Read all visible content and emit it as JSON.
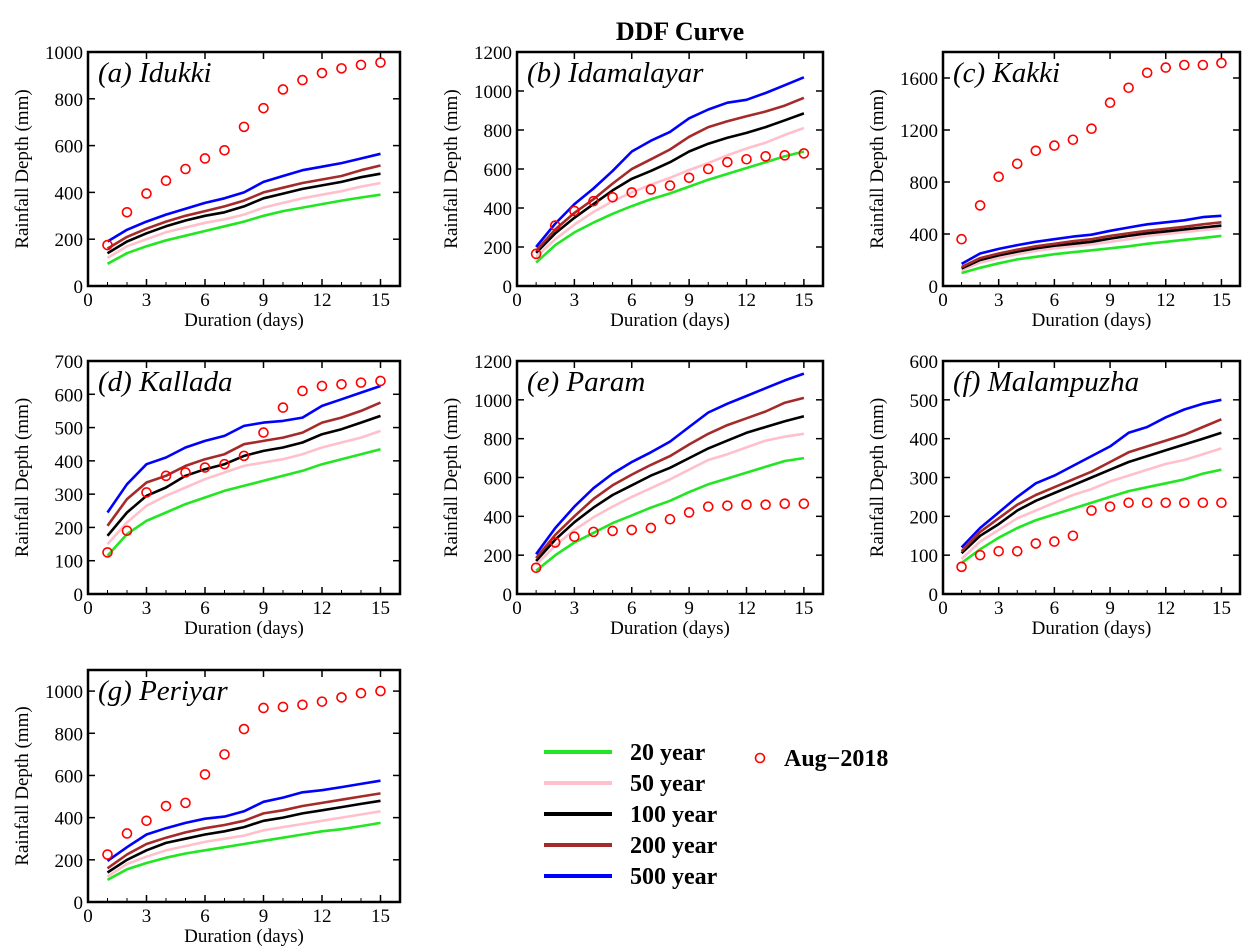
{
  "figure_title": "DDF Curve",
  "colors": {
    "20 year": "#22e622",
    "50 year": "#ffc0cb",
    "100 year": "#000000",
    "200 year": "#a52a2a",
    "500 year": "#0000ff",
    "Aug−2018": "#ff0000"
  },
  "legend": {
    "entries": [
      {
        "label": "20 year",
        "color": "#22e622",
        "kind": "line"
      },
      {
        "label": "50 year",
        "color": "#ffc0cb",
        "kind": "line"
      },
      {
        "label": "100 year",
        "color": "#000000",
        "kind": "line"
      },
      {
        "label": "200 year",
        "color": "#a52a2a",
        "kind": "line"
      },
      {
        "label": "500 year",
        "color": "#0000ff",
        "kind": "line"
      },
      {
        "label": "Aug−2018",
        "color": "#ff0000",
        "kind": "marker"
      }
    ]
  },
  "chart_data": [
    {
      "type": "line",
      "title": "(a) Idukki",
      "xlabel": "Duration (days)",
      "ylabel": "Rainfall Depth (mm)",
      "xlim": [
        0,
        16
      ],
      "ylim": [
        0,
        1000
      ],
      "xticks": [
        0,
        3,
        6,
        9,
        12,
        15
      ],
      "yticks": [
        0,
        200,
        400,
        600,
        800,
        1000
      ],
      "x": [
        1,
        2,
        3,
        4,
        5,
        6,
        7,
        8,
        9,
        10,
        11,
        12,
        13,
        14,
        15
      ],
      "series": [
        {
          "name": "20 year",
          "values": [
            95,
            140,
            170,
            195,
            215,
            235,
            255,
            275,
            300,
            320,
            335,
            350,
            365,
            378,
            390
          ]
        },
        {
          "name": "50 year",
          "values": [
            120,
            170,
            200,
            230,
            250,
            270,
            285,
            305,
            335,
            355,
            375,
            390,
            405,
            425,
            440
          ]
        },
        {
          "name": "100 year",
          "values": [
            140,
            190,
            225,
            255,
            280,
            300,
            315,
            340,
            375,
            395,
            415,
            430,
            445,
            465,
            480
          ]
        },
        {
          "name": "200 year",
          "values": [
            160,
            210,
            245,
            275,
            300,
            320,
            340,
            365,
            400,
            420,
            440,
            455,
            470,
            495,
            515
          ]
        },
        {
          "name": "500 year",
          "values": [
            190,
            240,
            275,
            305,
            330,
            355,
            375,
            400,
            445,
            470,
            495,
            510,
            525,
            545,
            565
          ]
        },
        {
          "name": "Aug−2018",
          "marker": true,
          "values": [
            175,
            315,
            395,
            450,
            500,
            545,
            580,
            680,
            760,
            840,
            880,
            910,
            930,
            945,
            955
          ]
        }
      ]
    },
    {
      "type": "line",
      "title": "(b) Idamalayar",
      "xlabel": "Duration (days)",
      "ylabel": "Rainfall Depth (mm)",
      "xlim": [
        0,
        16
      ],
      "ylim": [
        0,
        1200
      ],
      "xticks": [
        0,
        3,
        6,
        9,
        12,
        15
      ],
      "yticks": [
        0,
        200,
        400,
        600,
        800,
        1000,
        1200
      ],
      "x": [
        1,
        2,
        3,
        4,
        5,
        6,
        7,
        8,
        9,
        10,
        11,
        12,
        13,
        14,
        15
      ],
      "series": [
        {
          "name": "20 year",
          "values": [
            120,
            210,
            275,
            325,
            370,
            410,
            445,
            475,
            510,
            545,
            575,
            605,
            635,
            665,
            690
          ]
        },
        {
          "name": "50 year",
          "values": [
            150,
            240,
            315,
            380,
            435,
            480,
            520,
            555,
            595,
            630,
            670,
            705,
            735,
            775,
            810
          ]
        },
        {
          "name": "100 year",
          "values": [
            170,
            270,
            350,
            420,
            490,
            550,
            590,
            635,
            690,
            730,
            760,
            785,
            815,
            850,
            885
          ]
        },
        {
          "name": "200 year",
          "values": [
            180,
            290,
            375,
            445,
            525,
            600,
            650,
            700,
            765,
            815,
            845,
            870,
            895,
            925,
            965
          ]
        },
        {
          "name": "500 year",
          "values": [
            200,
            320,
            420,
            500,
            590,
            690,
            745,
            790,
            860,
            905,
            940,
            955,
            990,
            1030,
            1070
          ]
        },
        {
          "name": "Aug−2018",
          "marker": true,
          "values": [
            165,
            310,
            385,
            435,
            455,
            480,
            495,
            515,
            555,
            600,
            635,
            650,
            665,
            670,
            680
          ]
        }
      ]
    },
    {
      "type": "line",
      "title": "(c) Kakki",
      "xlabel": "Duration (days)",
      "ylabel": "Rainfall Depth (mm)",
      "xlim": [
        0,
        16
      ],
      "ylim": [
        0,
        1800
      ],
      "xticks": [
        0,
        3,
        6,
        9,
        12,
        15
      ],
      "yticks": [
        0,
        400,
        800,
        1200,
        1600
      ],
      "x": [
        1,
        2,
        3,
        4,
        5,
        6,
        7,
        8,
        9,
        10,
        11,
        12,
        13,
        14,
        15
      ],
      "series": [
        {
          "name": "20 year",
          "values": [
            100,
            140,
            175,
            205,
            225,
            245,
            260,
            275,
            290,
            305,
            325,
            340,
            355,
            370,
            385
          ]
        },
        {
          "name": "50 year",
          "values": [
            120,
            180,
            215,
            245,
            270,
            290,
            305,
            320,
            340,
            360,
            385,
            400,
            415,
            430,
            445
          ]
        },
        {
          "name": "100 year",
          "values": [
            135,
            200,
            235,
            265,
            290,
            310,
            325,
            340,
            365,
            385,
            405,
            420,
            435,
            450,
            465
          ]
        },
        {
          "name": "200 year",
          "values": [
            145,
            215,
            250,
            280,
            305,
            325,
            345,
            360,
            385,
            405,
            425,
            440,
            455,
            475,
            490
          ]
        },
        {
          "name": "500 year",
          "values": [
            170,
            250,
            285,
            315,
            340,
            360,
            380,
            395,
            425,
            450,
            475,
            490,
            505,
            530,
            540
          ]
        },
        {
          "name": "Aug−2018",
          "marker": true,
          "values": [
            360,
            620,
            840,
            940,
            1040,
            1080,
            1125,
            1210,
            1410,
            1525,
            1640,
            1680,
            1700,
            1700,
            1715
          ]
        }
      ]
    },
    {
      "type": "line",
      "title": "(d) Kallada",
      "xlabel": "Duration (days)",
      "ylabel": "Rainfall Depth (mm)",
      "xlim": [
        0,
        16
      ],
      "ylim": [
        0,
        700
      ],
      "xticks": [
        0,
        3,
        6,
        9,
        12,
        15
      ],
      "yticks": [
        0,
        100,
        200,
        300,
        400,
        500,
        600,
        700
      ],
      "x": [
        1,
        2,
        3,
        4,
        5,
        6,
        7,
        8,
        9,
        10,
        11,
        12,
        13,
        14,
        15
      ],
      "series": [
        {
          "name": "20 year",
          "values": [
            115,
            180,
            220,
            245,
            270,
            290,
            310,
            325,
            340,
            355,
            370,
            390,
            405,
            420,
            435
          ]
        },
        {
          "name": "50 year",
          "values": [
            150,
            215,
            265,
            295,
            320,
            345,
            365,
            385,
            395,
            405,
            420,
            440,
            455,
            470,
            490
          ]
        },
        {
          "name": "100 year",
          "values": [
            175,
            245,
            295,
            320,
            355,
            375,
            390,
            415,
            430,
            440,
            455,
            480,
            495,
            515,
            535
          ]
        },
        {
          "name": "200 year",
          "values": [
            205,
            285,
            335,
            355,
            385,
            405,
            420,
            450,
            460,
            470,
            485,
            515,
            530,
            550,
            575
          ]
        },
        {
          "name": "500 year",
          "values": [
            245,
            330,
            390,
            410,
            440,
            460,
            475,
            505,
            515,
            520,
            530,
            565,
            585,
            605,
            625
          ]
        },
        {
          "name": "Aug−2018",
          "marker": true,
          "values": [
            125,
            190,
            305,
            355,
            365,
            380,
            390,
            415,
            485,
            560,
            610,
            625,
            630,
            635,
            640
          ]
        }
      ]
    },
    {
      "type": "line",
      "title": "(e) Param",
      "xlabel": "Duration (days)",
      "ylabel": "Rainfall Depth (mm)",
      "xlim": [
        0,
        16
      ],
      "ylim": [
        0,
        1200
      ],
      "xticks": [
        0,
        3,
        6,
        9,
        12,
        15
      ],
      "yticks": [
        0,
        200,
        400,
        600,
        800,
        1000,
        1200
      ],
      "x": [
        1,
        2,
        3,
        4,
        5,
        6,
        7,
        8,
        9,
        10,
        11,
        12,
        13,
        14,
        15
      ],
      "series": [
        {
          "name": "20 year",
          "values": [
            120,
            200,
            265,
            315,
            365,
            405,
            445,
            480,
            525,
            565,
            595,
            625,
            655,
            685,
            700
          ]
        },
        {
          "name": "50 year",
          "values": [
            150,
            250,
            330,
            395,
            450,
            500,
            545,
            590,
            640,
            690,
            720,
            755,
            790,
            810,
            825
          ]
        },
        {
          "name": "100 year",
          "values": [
            170,
            280,
            370,
            445,
            510,
            560,
            610,
            650,
            700,
            750,
            790,
            830,
            860,
            890,
            915
          ]
        },
        {
          "name": "200 year",
          "values": [
            185,
            305,
            400,
            490,
            560,
            615,
            665,
            710,
            770,
            825,
            870,
            905,
            940,
            985,
            1010
          ]
        },
        {
          "name": "500 year",
          "values": [
            205,
            340,
            450,
            545,
            620,
            680,
            730,
            785,
            860,
            935,
            980,
            1020,
            1060,
            1100,
            1135
          ]
        },
        {
          "name": "Aug−2018",
          "marker": true,
          "values": [
            135,
            265,
            295,
            320,
            325,
            330,
            340,
            385,
            420,
            450,
            455,
            460,
            460,
            465,
            465
          ]
        }
      ]
    },
    {
      "type": "line",
      "title": "(f) Malampuzha",
      "xlabel": "Duration (days)",
      "ylabel": "Rainfall Depth (mm)",
      "xlim": [
        0,
        16
      ],
      "ylim": [
        0,
        600
      ],
      "xticks": [
        0,
        3,
        6,
        9,
        12,
        15
      ],
      "yticks": [
        0,
        100,
        200,
        300,
        400,
        500,
        600
      ],
      "x": [
        1,
        2,
        3,
        4,
        5,
        6,
        7,
        8,
        9,
        10,
        11,
        12,
        13,
        14,
        15
      ],
      "series": [
        {
          "name": "20 year",
          "values": [
            80,
            115,
            145,
            170,
            190,
            205,
            220,
            235,
            250,
            265,
            275,
            285,
            295,
            310,
            320
          ]
        },
        {
          "name": "50 year",
          "values": [
            90,
            135,
            165,
            195,
            215,
            235,
            255,
            270,
            290,
            305,
            320,
            335,
            345,
            360,
            375
          ]
        },
        {
          "name": "100 year",
          "values": [
            105,
            150,
            180,
            215,
            240,
            260,
            280,
            300,
            320,
            340,
            355,
            370,
            385,
            400,
            415
          ]
        },
        {
          "name": "200 year",
          "values": [
            110,
            160,
            195,
            230,
            255,
            275,
            295,
            315,
            340,
            365,
            380,
            395,
            410,
            430,
            450
          ]
        },
        {
          "name": "500 year",
          "values": [
            120,
            170,
            210,
            250,
            285,
            305,
            330,
            355,
            380,
            415,
            430,
            455,
            475,
            490,
            500
          ]
        },
        {
          "name": "Aug−2018",
          "marker": true,
          "values": [
            70,
            100,
            110,
            110,
            130,
            135,
            150,
            215,
            225,
            235,
            235,
            235,
            235,
            235,
            235
          ]
        }
      ]
    },
    {
      "type": "line",
      "title": "(g) Periyar",
      "xlabel": "Duration (days)",
      "ylabel": "Rainfall Depth (mm)",
      "xlim": [
        0,
        16
      ],
      "ylim": [
        0,
        1100
      ],
      "xticks": [
        0,
        3,
        6,
        9,
        12,
        15
      ],
      "yticks": [
        0,
        200,
        400,
        600,
        800,
        1000
      ],
      "x": [
        1,
        2,
        3,
        4,
        5,
        6,
        7,
        8,
        9,
        10,
        11,
        12,
        13,
        14,
        15
      ],
      "series": [
        {
          "name": "20 year",
          "values": [
            105,
            155,
            185,
            210,
            230,
            245,
            260,
            275,
            290,
            305,
            320,
            335,
            345,
            360,
            375
          ]
        },
        {
          "name": "50 year",
          "values": [
            120,
            180,
            215,
            245,
            265,
            285,
            300,
            315,
            340,
            355,
            370,
            385,
            400,
            415,
            430
          ]
        },
        {
          "name": "100 year",
          "values": [
            140,
            200,
            245,
            280,
            300,
            320,
            335,
            355,
            385,
            400,
            420,
            435,
            450,
            465,
            480
          ]
        },
        {
          "name": "200 year",
          "values": [
            160,
            225,
            275,
            305,
            330,
            350,
            365,
            385,
            420,
            435,
            455,
            470,
            485,
            500,
            515
          ]
        },
        {
          "name": "500 year",
          "values": [
            195,
            260,
            320,
            350,
            375,
            395,
            405,
            430,
            475,
            495,
            520,
            530,
            545,
            560,
            575
          ]
        },
        {
          "name": "Aug−2018",
          "marker": true,
          "values": [
            225,
            325,
            385,
            455,
            470,
            605,
            700,
            820,
            920,
            925,
            935,
            950,
            970,
            990,
            1000
          ]
        }
      ]
    }
  ]
}
